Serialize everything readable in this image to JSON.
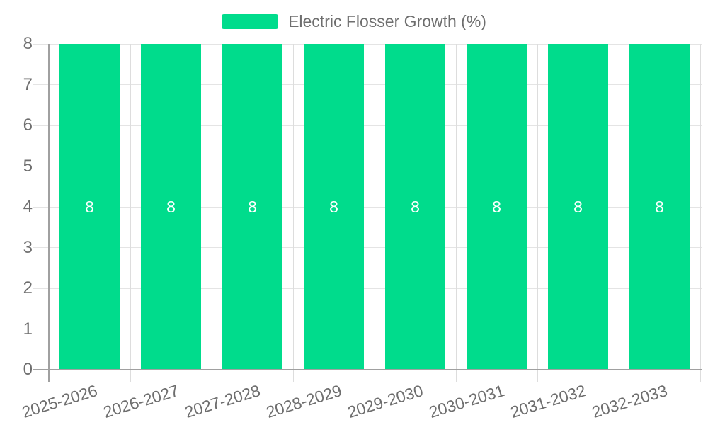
{
  "legend": {
    "label": "Electric Flosser Growth (%)"
  },
  "colors": {
    "bar": "#00DC8C",
    "bar_label_text": "#FFFFFF",
    "axis_line": "#A0A0A0",
    "grid_line": "#E4E4E4",
    "separator_line": "#DDDDDD",
    "axis_text": "#6E6E6E",
    "legend_text": "#6E6E6E",
    "background": "#FFFFFF"
  },
  "chart_data": {
    "type": "bar",
    "title": "Electric Flosser Growth (%)",
    "categories": [
      "2025-2026",
      "2026-2027",
      "2027-2028",
      "2028-2029",
      "2029-2030",
      "2030-2031",
      "2031-2032",
      "2032-2033"
    ],
    "series": [
      {
        "name": "Electric Flosser Growth (%)",
        "values": [
          8,
          8,
          8,
          8,
          8,
          8,
          8,
          8
        ]
      }
    ],
    "bar_value_labels": [
      "8",
      "8",
      "8",
      "8",
      "8",
      "8",
      "8",
      "8"
    ],
    "xlabel": "",
    "ylabel": "",
    "ylim": [
      0,
      8
    ],
    "yticks": [
      0,
      1,
      2,
      3,
      4,
      5,
      6,
      7,
      8
    ],
    "grid": true,
    "x_label_rotation_deg": -17,
    "legend_position": "top-center",
    "value_label_position": "inside-center"
  }
}
